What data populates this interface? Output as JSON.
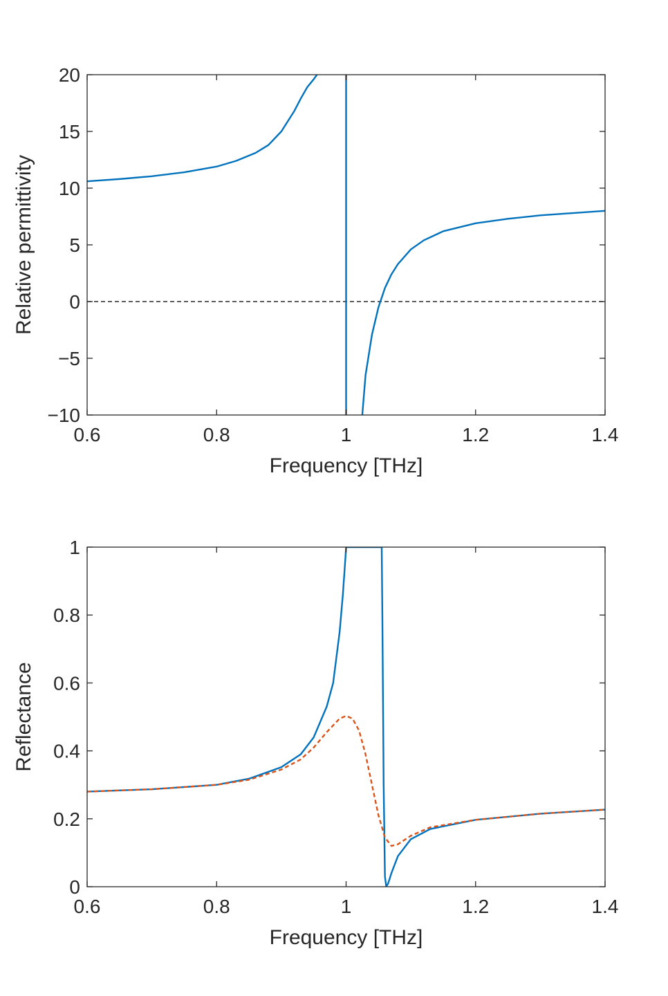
{
  "chart_data": [
    {
      "type": "line",
      "title": "",
      "xlabel": "Frequency [THz]",
      "ylabel": "Relative permittivity",
      "xlim": [
        0.6,
        1.4
      ],
      "ylim": [
        -10,
        20
      ],
      "xticks": [
        "0.6",
        "0.8",
        "1",
        "1.2",
        "1.4"
      ],
      "yticks": [
        "−10",
        "−5",
        "0",
        "5",
        "10",
        "15",
        "20"
      ],
      "grid": false,
      "legend": "none",
      "reference_line": {
        "y": 0,
        "style": "dashed",
        "color": "#262626"
      },
      "series": [
        {
          "color": "#0072BD",
          "style": "solid",
          "segments": [
            {
              "x": [
                0.6,
                0.65,
                0.7,
                0.75,
                0.8,
                0.83,
                0.86,
                0.88,
                0.9,
                0.92,
                0.93,
                0.94,
                0.95,
                0.955
              ],
              "y": [
                10.6,
                10.8,
                11.05,
                11.4,
                11.9,
                12.4,
                13.1,
                13.8,
                15.0,
                16.8,
                17.9,
                18.9,
                19.6,
                20.0
              ]
            },
            {
              "x": [
                1.0,
                1.0
              ],
              "y": [
                20.0,
                -10.0
              ]
            },
            {
              "x": [
                1.025,
                1.03,
                1.04,
                1.05,
                1.06,
                1.07,
                1.08,
                1.1,
                1.12,
                1.15,
                1.2,
                1.25,
                1.3,
                1.35,
                1.4
              ],
              "y": [
                -10.0,
                -6.5,
                -2.9,
                -0.5,
                1.2,
                2.4,
                3.3,
                4.6,
                5.4,
                6.2,
                6.9,
                7.3,
                7.6,
                7.8,
                8.0
              ]
            }
          ]
        }
      ]
    },
    {
      "type": "line",
      "title": "",
      "xlabel": "Frequency [THz]",
      "ylabel": "Reflectance",
      "xlim": [
        0.6,
        1.4
      ],
      "ylim": [
        0,
        1
      ],
      "xticks": [
        "0.6",
        "0.8",
        "1",
        "1.2",
        "1.4"
      ],
      "yticks": [
        "0",
        "0.2",
        "0.4",
        "0.6",
        "0.8",
        "1"
      ],
      "grid": false,
      "legend": "none",
      "series": [
        {
          "color": "#0072BD",
          "style": "solid",
          "x": [
            0.6,
            0.7,
            0.8,
            0.85,
            0.9,
            0.93,
            0.95,
            0.97,
            0.98,
            0.99,
            0.995,
            0.999,
            1.0,
            1.02,
            1.04,
            1.055,
            1.056,
            1.058,
            1.06,
            1.062,
            1.065,
            1.07,
            1.08,
            1.1,
            1.13,
            1.2,
            1.3,
            1.4
          ],
          "y": [
            0.28,
            0.287,
            0.3,
            0.318,
            0.352,
            0.39,
            0.44,
            0.53,
            0.6,
            0.75,
            0.86,
            0.97,
            1.0,
            1.0,
            1.0,
            1.0,
            0.8,
            0.3,
            0.03,
            0.0,
            0.01,
            0.04,
            0.09,
            0.14,
            0.17,
            0.197,
            0.215,
            0.227
          ]
        },
        {
          "color": "#D95319",
          "style": "dashed",
          "x": [
            0.6,
            0.7,
            0.8,
            0.85,
            0.9,
            0.93,
            0.95,
            0.97,
            0.99,
            1.0,
            1.01,
            1.02,
            1.03,
            1.04,
            1.05,
            1.06,
            1.07,
            1.08,
            1.1,
            1.13,
            1.2,
            1.3,
            1.4
          ],
          "y": [
            0.28,
            0.287,
            0.3,
            0.315,
            0.345,
            0.375,
            0.41,
            0.455,
            0.495,
            0.503,
            0.495,
            0.46,
            0.39,
            0.3,
            0.21,
            0.145,
            0.12,
            0.125,
            0.15,
            0.175,
            0.197,
            0.215,
            0.227
          ]
        }
      ]
    }
  ]
}
